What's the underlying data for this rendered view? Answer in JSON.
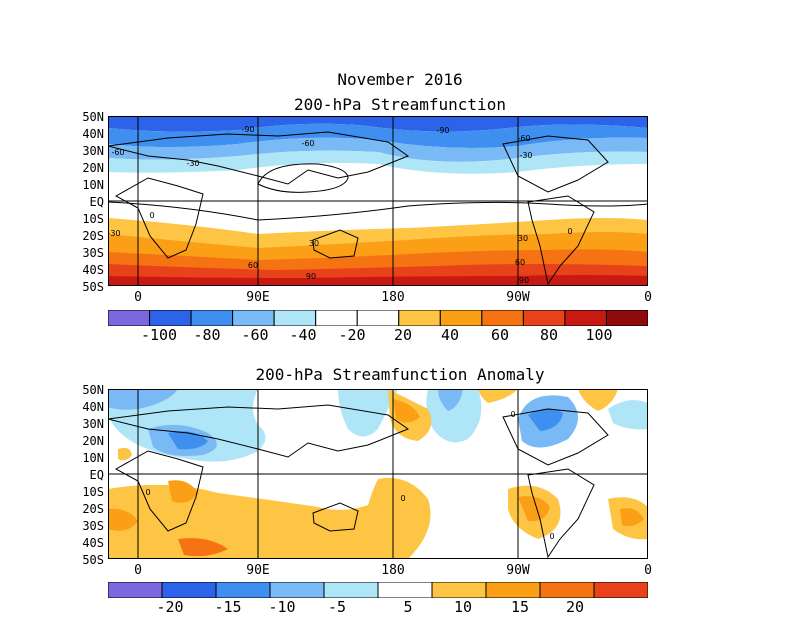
{
  "header": {
    "month": "November 2016",
    "panel1_title": "200-hPa Streamfunction",
    "panel2_title": "200-hPa Streamfunction Anomaly"
  },
  "axes": {
    "lat_labels": [
      "50N",
      "40N",
      "30N",
      "20N",
      "10N",
      "EQ",
      "10S",
      "20S",
      "30S",
      "40S",
      "50S"
    ],
    "lon_labels": [
      "0",
      "90E",
      "180",
      "90W",
      "0"
    ]
  },
  "panel1": {
    "contour_labels": [
      "-90",
      "-60",
      "-60",
      "-90",
      "-60",
      "-30",
      "-30",
      "-30",
      "0",
      "0",
      "30",
      "30",
      "30",
      "60",
      "60",
      "90",
      "90"
    ],
    "colorbar": {
      "colors": [
        "#7b68dd",
        "#2c63e8",
        "#3e8ff0",
        "#79b9f5",
        "#aee6f7",
        "#ffffff",
        "#ffffff",
        "#fdc543",
        "#fb9f16",
        "#f67314",
        "#e8421a",
        "#c81a12",
        "#8f0b0b"
      ],
      "labels": [
        "-100",
        "-80",
        "-60",
        "-40",
        "-20",
        "20",
        "40",
        "60",
        "80",
        "100"
      ]
    }
  },
  "panel2": {
    "contour_labels": [
      "0",
      "0",
      "0",
      "0"
    ],
    "colorbar": {
      "colors": [
        "#7b68dd",
        "#2c63e8",
        "#3e8ff0",
        "#79b9f5",
        "#aee6f7",
        "#ffffff",
        "#fdc543",
        "#fb9f16",
        "#f67314",
        "#e8421a"
      ],
      "labels": [
        "-20",
        "-15",
        "-10",
        "-5",
        "5",
        "10",
        "15",
        "20"
      ]
    }
  }
}
